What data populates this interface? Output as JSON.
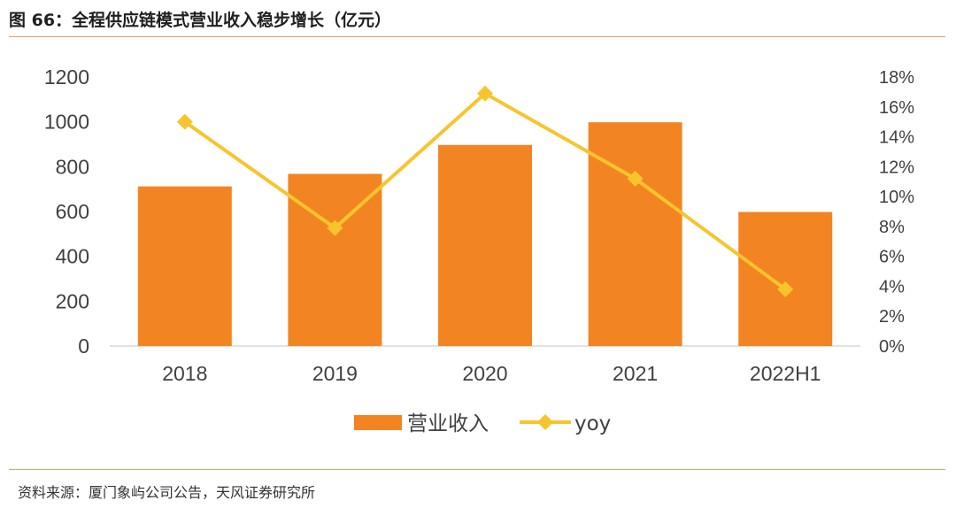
{
  "title": "图 66：全程供应链模式营业收入稳步增长（亿元）",
  "source": "资料来源：厦门象屿公司公告，天风证券研究所",
  "chart_data": {
    "type": "bar",
    "categories": [
      "2018",
      "2019",
      "2020",
      "2021",
      "2022H1"
    ],
    "series": [
      {
        "name": "营业收入",
        "type": "bar",
        "axis": "left",
        "values": [
          712,
          768,
          897,
          998,
          598
        ]
      },
      {
        "name": "yoy",
        "type": "line",
        "axis": "right",
        "values": [
          0.15,
          0.079,
          0.169,
          0.112,
          0.038
        ]
      }
    ],
    "y_left": {
      "ylim": [
        0,
        1200
      ],
      "ticks": [
        "0",
        "200",
        "400",
        "600",
        "800",
        "1000",
        "1200"
      ]
    },
    "y_right": {
      "ylim": [
        0,
        0.18
      ],
      "ticks": [
        "0%",
        "2%",
        "4%",
        "6%",
        "8%",
        "10%",
        "12%",
        "14%",
        "16%",
        "18%"
      ]
    },
    "grid": false,
    "legend": "bottom-center",
    "colors": {
      "bar": "#f28522",
      "line": "#f8c42e",
      "axis": "#d9d9d9"
    }
  }
}
